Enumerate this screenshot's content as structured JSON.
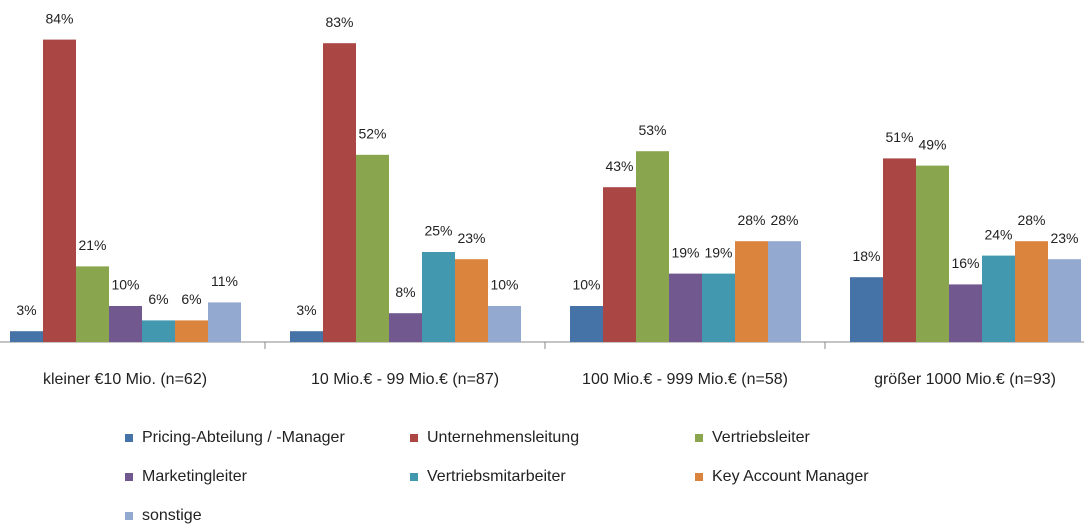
{
  "chart_data": {
    "type": "bar",
    "categories": [
      "kleiner €10 Mio. (n=62)",
      "10 Mio.€  - 99 Mio.€ (n=87)",
      "100 Mio.€ - 999 Mio.€ (n=58)",
      "größer 1000 Mio.€ (n=93)"
    ],
    "series": [
      {
        "name": "Pricing-Abteilung / -Manager",
        "color": "#4572a7",
        "values": [
          3,
          3,
          10,
          18
        ],
        "value_labels": [
          "3%",
          "3%",
          "10%",
          "18%"
        ]
      },
      {
        "name": "Unternehmensleitung",
        "color": "#aa4643",
        "values": [
          84,
          83,
          43,
          51
        ],
        "value_labels": [
          "84%",
          "83%",
          "43%",
          "51%"
        ]
      },
      {
        "name": "Vertriebsleiter",
        "color": "#89a54e",
        "values": [
          21,
          52,
          53,
          49
        ],
        "value_labels": [
          "21%",
          "52%",
          "53%",
          "49%"
        ]
      },
      {
        "name": "Marketingleiter",
        "color": "#71588f",
        "values": [
          10,
          8,
          19,
          16
        ],
        "value_labels": [
          "10%",
          "8%",
          "19%",
          "16%"
        ]
      },
      {
        "name": "Vertriebsmitarbeiter",
        "color": "#4198af",
        "values": [
          6,
          25,
          19,
          24
        ],
        "value_labels": [
          "6%",
          "25%",
          "19%",
          "24%"
        ]
      },
      {
        "name": "Key Account Manager",
        "color": "#db843d",
        "values": [
          6,
          23,
          28,
          28
        ],
        "value_labels": [
          "6%",
          "23%",
          "28%",
          "28%"
        ]
      },
      {
        "name": "sonstige",
        "color": "#93a9cf",
        "values": [
          11,
          10,
          28,
          23
        ],
        "value_labels": [
          "11%",
          "10%",
          "28%",
          "23%"
        ]
      }
    ]
  }
}
